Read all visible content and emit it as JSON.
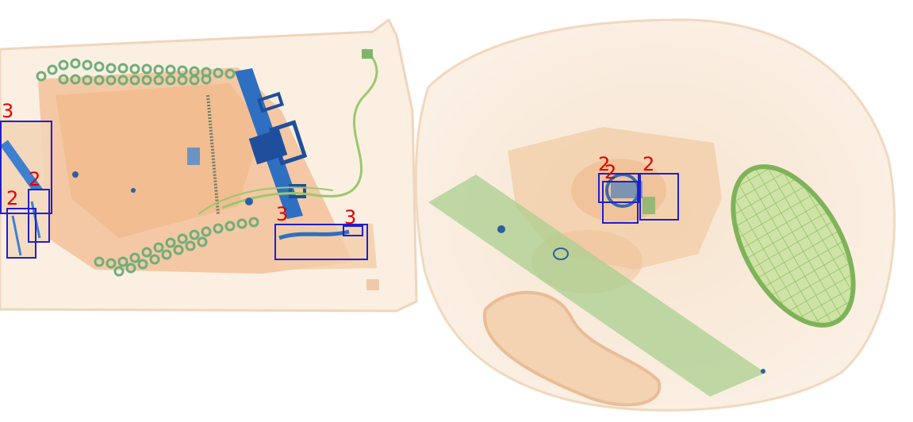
{
  "colors": {
    "background": "#ffffff",
    "organic": "#f2c9a0",
    "organic_dark": "#e9a978",
    "mixed": "#9ccc7a",
    "metal": "#2f6fc2",
    "box_stroke": "#1f1fd0",
    "label": "#e00000"
  },
  "detections": [
    {
      "label": "3"
    },
    {
      "label": "2"
    },
    {
      "label": "2"
    },
    {
      "label": "3"
    },
    {
      "label": "3"
    },
    {
      "label": "2"
    },
    {
      "label": "2"
    },
    {
      "label": "2"
    }
  ]
}
